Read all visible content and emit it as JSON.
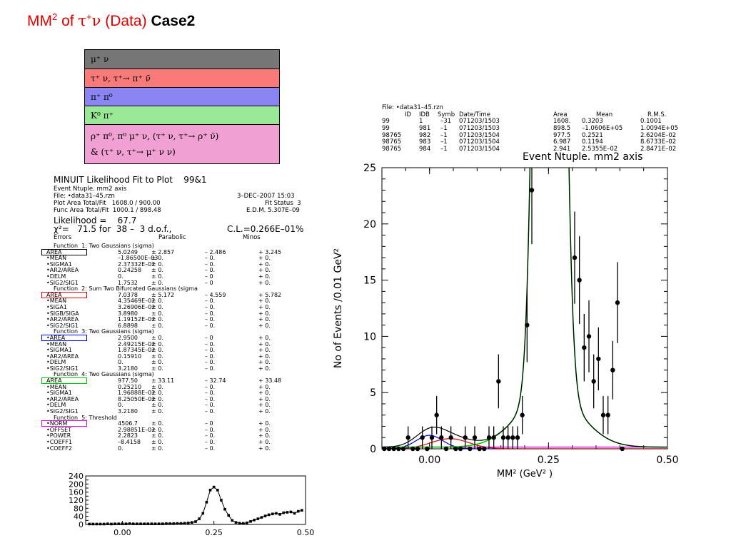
{
  "title": {
    "prefix": "MM",
    "sup": "2",
    "of": " of ",
    "tau": "τ",
    "plus": "+",
    "nu": "ν",
    "data": " (Data) ",
    "case": "Case2"
  },
  "legend": {
    "rows": [
      {
        "label": "μ⁺ ν",
        "color": "#777777"
      },
      {
        "label": "τ⁺ ν, τ⁺→ π⁺ ν̄",
        "color": "#fa7a7a"
      },
      {
        "label": "π⁺ π⁰",
        "color": "#8a85f3"
      },
      {
        "label": "K⁰ π⁺",
        "color": "#98e896"
      },
      {
        "label": "ρ⁺ π⁰,  π⁰ μ⁺ ν, (τ⁺ ν, τ⁺→ ρ⁺ ν̄)",
        "label2": "&   (τ⁺ ν, τ⁺→ μ⁺ ν ν)",
        "color": "#f0a0d2"
      }
    ]
  },
  "fit": {
    "title": "MINUIT Likelihood Fit to Plot    99&1",
    "line1": "Event Ntuple. mm2 axis",
    "line2": "File: •data31–45.rzn",
    "date": "3–DEC–2007 15:03",
    "plot_area": "Plot Area Total/Fit   1608.0 / 900.00",
    "fit_status": "Fit Status  3",
    "func_area": "Func Area Total/Fit  1000.1 / 898.48",
    "edm": "E.D.M. 5.307E–09",
    "likelihood": "Likelihood =    67.7",
    "chi2": "χ²=   71.5 for  38 –  3 d.o.f.,",
    "cl": "C.L.=0.266E–01%",
    "hdr_errors": "Errors",
    "hdr_parabolic": "Parabolic",
    "hdr_minos": "Minos",
    "rows": [
      [
        "Function  1: Two Gaussians (sigma)",
        "",
        "",
        "",
        ""
      ],
      [
        "AREA",
        "5.0249",
        "± 2.857",
        "– 2.486",
        "+ 3.245"
      ],
      [
        "•MEAN",
        "–1.86500E–03",
        "± 0.",
        "– 0.",
        "+ 0."
      ],
      [
        "•SIGMA1",
        "2.37332E–02",
        "± 0.",
        "– 0.",
        "+ 0."
      ],
      [
        "•AR2/AREA",
        "0.24258",
        "± 0.",
        "– 0.",
        "+ 0."
      ],
      [
        "•DELM",
        "0.",
        "± 0.",
        "– 0",
        "+ 0."
      ],
      [
        "•SIG2/SIG1",
        "1.7532",
        "± 0.",
        "– 0",
        "+ 0."
      ],
      [
        "Function  2: Sum Two Bifurcated Gaussians (sigma",
        "",
        "",
        "",
        ""
      ],
      [
        "AREA",
        "7.0378",
        "± 5.172",
        "– 4.559",
        "+ 5.782"
      ],
      [
        "•MEAN",
        "4.35469E–02",
        "± 0.",
        "– 0.",
        "+ 0."
      ],
      [
        "•SIGA1",
        "3.26906E–02",
        "± 0.",
        "– 0.",
        "+ 0."
      ],
      [
        "•SIGB/SIGA",
        "3.8980",
        "± 0.",
        "– 0.",
        "+ 0."
      ],
      [
        "•AR2/AREA",
        "1.19152E–02",
        "± 0.",
        "– 0.",
        "+ 0."
      ],
      [
        "•SIG2/SIG1",
        "6.8898",
        "± 0.",
        "– 0.",
        "+ 0."
      ],
      [
        "Function  3: Two Gaussians (sigma)",
        "",
        "",
        "",
        ""
      ],
      [
        "•AREA",
        "2.9500",
        "± 0.",
        "– 0",
        "+ 0."
      ],
      [
        "•MEAN",
        "2.49215E–02",
        "± 0.",
        "– 0.",
        "+ 0."
      ],
      [
        "•SIGMA1",
        "1.87345E–02",
        "± 0.",
        "– 0.",
        "+ 0."
      ],
      [
        "•AR2/AREA",
        "0.15910",
        "± 0.",
        "– 0.",
        "+ 0."
      ],
      [
        "•DELM",
        "0.",
        "± 0.",
        "– 0.",
        "+ 0."
      ],
      [
        "•SIG2/SIG1",
        "3.2180",
        "± 0.",
        "– 0.",
        "+ 0."
      ],
      [
        "Function  4: Two Gaussians (sigma)",
        "",
        "",
        "",
        ""
      ],
      [
        "AREA",
        "977.50",
        "± 33.11",
        "– 32.74",
        "+ 33.48"
      ],
      [
        "•MEAN",
        "0.25210",
        "± 0.",
        "– 0.",
        "+ 0."
      ],
      [
        "•SIGMA1",
        "1.96888E–02",
        "± 0.",
        "– 0.",
        "+ 0."
      ],
      [
        "•AR2/AREA",
        "8.25050E–02",
        "± 0.",
        "– 0.",
        "+ 0."
      ],
      [
        "•DELM",
        "0.",
        "± 0.",
        "– 0.",
        "+ 0."
      ],
      [
        "•SIG2/SIG1",
        "3.2180",
        "± 0.",
        "– 0.",
        "+ 0."
      ],
      [
        "Function  5: Threshold",
        "",
        "",
        "",
        ""
      ],
      [
        "•NORM",
        "4506.7",
        "± 0.",
        "– 0",
        "+ 0."
      ],
      [
        "•OFFSET",
        "2.98851E–02",
        "± 0.",
        "– 0.",
        "+ 0."
      ],
      [
        "•POWER",
        "2.2823",
        "± 0.",
        "– 0.",
        "+ 0."
      ],
      [
        "•COEFF1",
        "–8.4158",
        "± 0.",
        "– 0.",
        "+ 0."
      ],
      [
        "•COEFF2",
        "0.",
        "± 0.",
        "– 0.",
        "+ 0."
      ]
    ],
    "area_markers": [
      {
        "row": 1,
        "color": "#000000"
      },
      {
        "row": 8,
        "color": "#e00000"
      },
      {
        "row": 15,
        "color": "#0000e0"
      },
      {
        "row": 22,
        "color": "#00c000"
      },
      {
        "row": 29,
        "color": "#e000e0"
      }
    ]
  },
  "info": {
    "file": "File: •data31–45.rzn",
    "headers": [
      "ID",
      "IDB",
      "Symb",
      "Date/Time",
      "Area",
      "Mean",
      "R.M.S."
    ],
    "rows": [
      [
        "99",
        "1",
        "–31",
        "071203/1503",
        "1608.",
        "0.3203",
        "0.1001"
      ],
      [
        "99",
        "981",
        "–1",
        "071203/1503",
        "898.5",
        "–1.0606E+05",
        "1.0094E+05"
      ],
      [
        "98765",
        "982",
        "–1",
        "071203/1504",
        "977.5",
        "0.2521",
        "2.6204E–02"
      ],
      [
        "98765",
        "983",
        "–1",
        "071203/1504",
        "6.987",
        "0.1194",
        "8.6733E–02"
      ],
      [
        "98765",
        "984",
        "–1",
        "071203/1504",
        "2.941",
        "2.5355E–02",
        "2.8471E–02"
      ]
    ]
  },
  "chart_data": [
    {
      "type": "scatter",
      "title": "Event Ntuple. mm2 axis",
      "xlabel": "MM² (GeV² )",
      "ylabel": "No of Events /0.01 GeV²",
      "xlim": [
        -0.1,
        0.5
      ],
      "ylim": [
        0,
        25
      ],
      "xticks": [
        0.0,
        0.25,
        0.5
      ],
      "xtick_labels": [
        "0.00",
        "0.25",
        "0.50"
      ],
      "yticks": [
        0,
        5,
        10,
        15,
        20,
        25
      ],
      "ytick_labels": [
        "0",
        "5",
        "10",
        "15",
        "20",
        "25"
      ],
      "series": [
        {
          "x": [
            -0.095,
            -0.085,
            -0.075,
            -0.065,
            -0.055,
            -0.045,
            -0.035,
            -0.025,
            -0.015,
            -0.005,
            0.005,
            0.015,
            0.025,
            0.035,
            0.045,
            0.055,
            0.065,
            0.075,
            0.085,
            0.095,
            0.105,
            0.115,
            0.125,
            0.135,
            0.145,
            0.155,
            0.165,
            0.175,
            0.185,
            0.195,
            0.205,
            0.215,
            0.305,
            0.315,
            0.325,
            0.335,
            0.345,
            0.355,
            0.365,
            0.375,
            0.385,
            0.395,
            0.405
          ],
          "y": [
            0,
            0,
            0,
            0,
            0,
            1,
            0,
            0,
            1,
            0,
            1,
            3,
            1,
            0,
            1,
            0,
            0,
            1,
            0,
            1,
            0,
            0,
            1,
            1,
            6,
            1,
            1,
            1,
            1,
            3,
            11,
            23,
            17,
            15,
            9,
            10,
            6,
            8,
            3,
            3,
            7,
            13,
            0
          ],
          "err": [
            0,
            0,
            0,
            0,
            0,
            1,
            0,
            0,
            1,
            0,
            1,
            1.7,
            1,
            0,
            1,
            0,
            0,
            1,
            0,
            1,
            0,
            0,
            1,
            1,
            2.4,
            1,
            1,
            1,
            1,
            1.7,
            3.3,
            4.8,
            4.1,
            3.9,
            3,
            3.2,
            2.4,
            2.8,
            1.7,
            1.7,
            2.6,
            3.6,
            0
          ]
        }
      ]
    },
    {
      "type": "scatter",
      "xlim": [
        -0.1,
        0.5
      ],
      "ylim": [
        0,
        240
      ],
      "xticks": [
        0.0,
        0.25,
        0.5
      ],
      "xtick_labels": [
        "0.00",
        "0.25",
        "0.50"
      ],
      "yticks": [
        0,
        20,
        40,
        60,
        80,
        100,
        120,
        140,
        160,
        180,
        200,
        220,
        240
      ],
      "ytick_labels": [
        "0",
        "20",
        "40",
        "60",
        "80",
        "100",
        "120",
        "140",
        "160",
        "180",
        "200",
        "220",
        "240"
      ],
      "series": [
        {
          "x": [
            -0.09,
            -0.08,
            -0.07,
            -0.06,
            -0.05,
            -0.04,
            -0.03,
            -0.02,
            -0.01,
            0.0,
            0.01,
            0.02,
            0.03,
            0.04,
            0.05,
            0.06,
            0.07,
            0.08,
            0.09,
            0.1,
            0.11,
            0.12,
            0.13,
            0.14,
            0.15,
            0.16,
            0.17,
            0.18,
            0.19,
            0.2,
            0.21,
            0.22,
            0.23,
            0.24,
            0.25,
            0.26,
            0.27,
            0.28,
            0.29,
            0.3,
            0.31,
            0.32,
            0.33,
            0.34,
            0.35,
            0.36,
            0.37,
            0.38,
            0.39,
            0.4,
            0.41,
            0.42,
            0.43,
            0.44,
            0.45,
            0.46,
            0.47,
            0.48,
            0.49
          ],
          "y": [
            2,
            2,
            2,
            2,
            2,
            3,
            2,
            3,
            3,
            3,
            3,
            4,
            3,
            3,
            3,
            3,
            3,
            3,
            3,
            3,
            3,
            4,
            4,
            4,
            5,
            5,
            6,
            7,
            10,
            14,
            28,
            55,
            110,
            170,
            185,
            170,
            120,
            75,
            45,
            20,
            10,
            6,
            5,
            8,
            15,
            22,
            28,
            35,
            42,
            48,
            52,
            55,
            50,
            58,
            60,
            62,
            55,
            65,
            70
          ]
        }
      ]
    }
  ]
}
